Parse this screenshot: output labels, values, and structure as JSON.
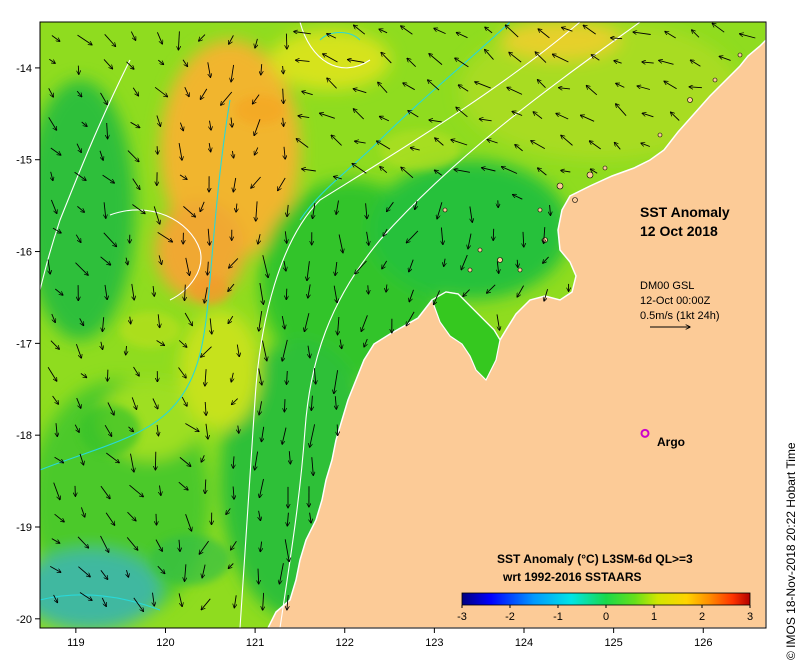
{
  "map": {
    "title_line1": "SST Anomaly",
    "title_line2": "12 Oct 2018",
    "current_info": {
      "line1": "DM00 GSL",
      "line2": "12-Oct 00:00Z",
      "line3": "0.5m/s (1kt 24h)"
    },
    "argo_label": "Argo",
    "argo_location": {
      "lon": 125.35,
      "lat": -17.98
    },
    "colorbar": {
      "title": "SST Anomaly (°C) L3SM-6d QL>=3",
      "subtitle": "wrt 1992-2016 SSTAARS",
      "ticks": [
        "-3",
        "-2",
        "-1",
        "0",
        "1",
        "2",
        "3"
      ],
      "range": [
        -3,
        3
      ],
      "colors": [
        "#00007f",
        "#0000ff",
        "#0099ff",
        "#00e5e5",
        "#19d94a",
        "#66e01a",
        "#d2e600",
        "#ffd400",
        "#ff8c00",
        "#ff3300",
        "#b30000"
      ]
    },
    "x_axis": {
      "ticks": [
        "119",
        "120",
        "121",
        "122",
        "123",
        "124",
        "125",
        "126"
      ],
      "range": [
        118.6,
        126.7
      ]
    },
    "y_axis": {
      "ticks": [
        "-14",
        "-15",
        "-16",
        "-17",
        "-18",
        "-19",
        "-20"
      ],
      "range": [
        -20.1,
        -13.5
      ]
    },
    "colors": {
      "land": "#fccb97",
      "ocean_green": "#35c81f",
      "ocean_yellow": "#b9e21c",
      "warm_orange": "#f2b02c",
      "cyan_contour": "#29d8d8",
      "argo_marker": "#cc00cc"
    },
    "credit": "© IMOS 18-Nov-2018 20:22 Hobart Time"
  }
}
